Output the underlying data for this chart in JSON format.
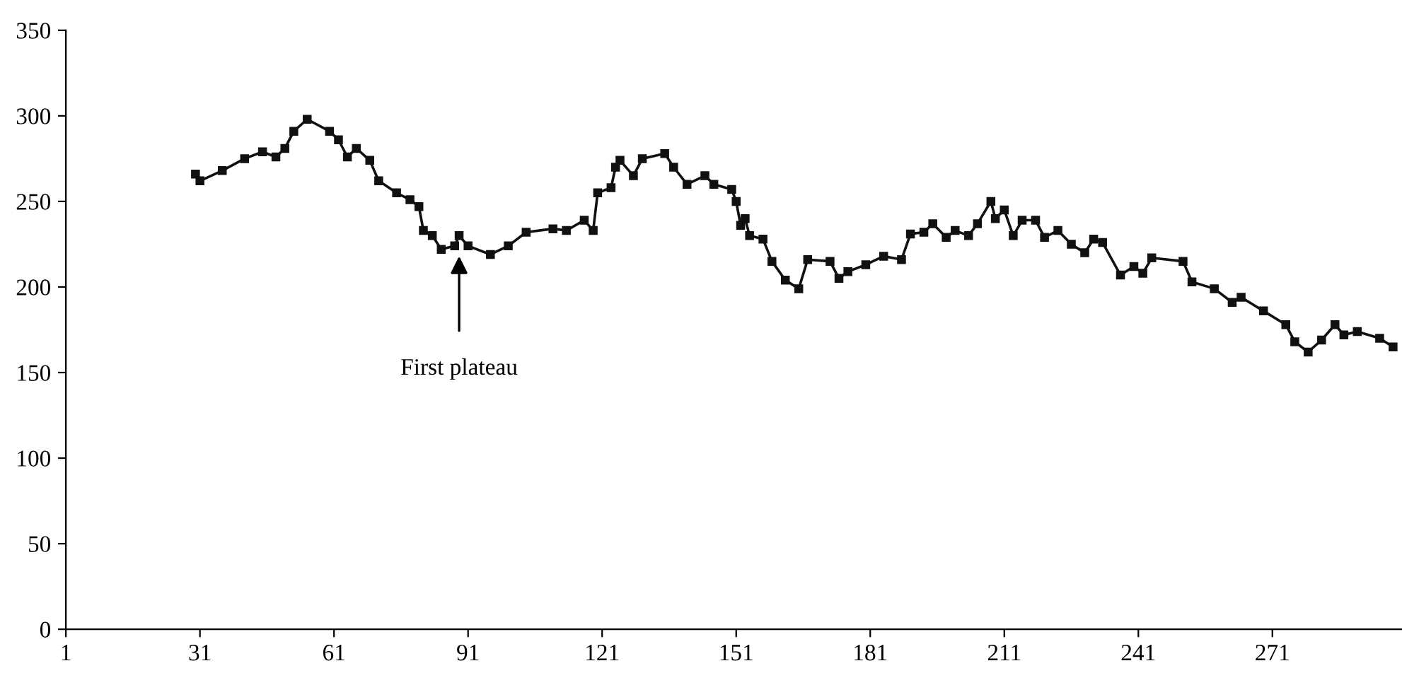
{
  "chart_data": {
    "type": "line",
    "marker": "square",
    "line_style": "solid",
    "grid": false,
    "legend": false,
    "xlim": [
      1,
      300
    ],
    "xticks": [
      1,
      31,
      61,
      91,
      121,
      151,
      181,
      211,
      241,
      271
    ],
    "ylim": [
      0,
      350
    ],
    "yticks": [
      0,
      50,
      100,
      150,
      200,
      250,
      300,
      350
    ],
    "annotations": [
      {
        "text": "First plateau",
        "x": 89,
        "y": 218
      }
    ],
    "series": [
      {
        "color": "#111111",
        "x": [
          30,
          31,
          36,
          41,
          45,
          48,
          50,
          52,
          55,
          60,
          62,
          64,
          66,
          69,
          71,
          75,
          78,
          80,
          81,
          83,
          85,
          88,
          89,
          91,
          96,
          100,
          104,
          110,
          113,
          117,
          119,
          120,
          123,
          124,
          125,
          128,
          130,
          135,
          137,
          140,
          144,
          146,
          150,
          151,
          152,
          153,
          154,
          157,
          159,
          162,
          165,
          167,
          172,
          174,
          176,
          180,
          184,
          188,
          190,
          193,
          195,
          198,
          200,
          203,
          205,
          208,
          209,
          211,
          213,
          215,
          218,
          220,
          223,
          226,
          229,
          231,
          233,
          237,
          240,
          242,
          244,
          251,
          253,
          258,
          262,
          264,
          269,
          274,
          276,
          279,
          282,
          285,
          287,
          290,
          295,
          298
        ],
        "values": [
          266,
          262,
          268,
          275,
          279,
          276,
          281,
          291,
          298,
          291,
          286,
          276,
          281,
          274,
          262,
          255,
          251,
          247,
          233,
          230,
          222,
          224,
          230,
          224,
          219,
          224,
          232,
          234,
          233,
          239,
          233,
          255,
          258,
          270,
          274,
          265,
          275,
          278,
          270,
          260,
          265,
          260,
          257,
          250,
          236,
          240,
          230,
          228,
          215,
          204,
          199,
          216,
          215,
          205,
          209,
          213,
          218,
          216,
          231,
          232,
          237,
          229,
          233,
          230,
          237,
          250,
          240,
          245,
          230,
          239,
          239,
          229,
          233,
          225,
          220,
          228,
          226,
          207,
          212,
          208,
          217,
          215,
          203,
          199,
          191,
          194,
          186,
          178,
          168,
          162,
          169,
          178,
          172,
          174,
          170,
          165
        ]
      }
    ]
  }
}
